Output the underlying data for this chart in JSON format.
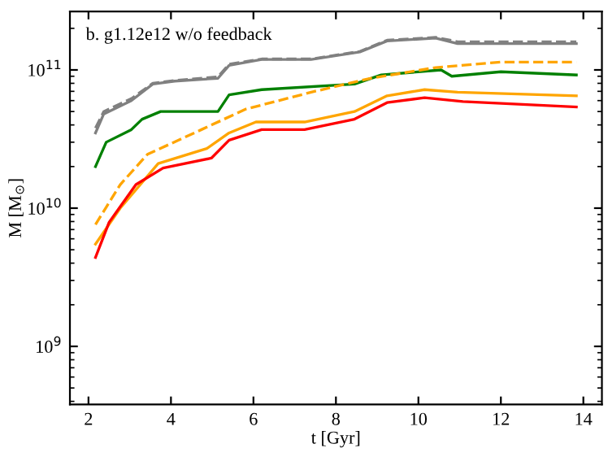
{
  "chart_data": {
    "type": "line",
    "xlabel": "t [Gyr]",
    "ylabel": "M [M$_{⊙}$]",
    "annotations": [
      "b. g1.12e12 w/o feedback"
    ],
    "log": "y",
    "xlim": [
      1.55,
      14.45
    ],
    "ylim": [
      380000000.0,
      265000000000.0
    ],
    "xticks": [
      2,
      4,
      6,
      8,
      10,
      12,
      14
    ],
    "yticks": [
      {
        "value": 1000000000.0,
        "label": "10$^{9}$"
      },
      {
        "value": 10000000000.0,
        "label": "10$^{10}$"
      },
      {
        "value": 100000000000.0,
        "label": "10$^{11}$"
      }
    ],
    "grid": false,
    "series": [
      {
        "color": "#808080",
        "line_style": "dashed",
        "x": [
          2.17,
          2.37,
          3.04,
          3.56,
          4.09,
          5.14,
          5.41,
          6.2,
          7.4,
          8.58,
          9.24,
          10.42,
          10.95,
          13.83
        ],
        "values": [
          38000000000.0,
          50000000000.0,
          62000000000.0,
          80000000000.0,
          84000000000.0,
          89000000000.0,
          110000000000.0,
          120000000000.0,
          120000000000.0,
          136000000000.0,
          164000000000.0,
          172000000000.0,
          160000000000.0,
          160000000000.0
        ]
      },
      {
        "color": "#808080",
        "line_style": "solid",
        "x": [
          2.17,
          2.37,
          3.04,
          3.56,
          4.09,
          5.14,
          5.41,
          6.2,
          7.4,
          8.58,
          9.24,
          10.42,
          10.95,
          13.83
        ],
        "values": [
          35000000000.0,
          48000000000.0,
          60000000000.0,
          79000000000.0,
          83000000000.0,
          87000000000.0,
          108000000000.0,
          119000000000.0,
          119000000000.0,
          135000000000.0,
          162000000000.0,
          170000000000.0,
          155000000000.0,
          155000000000.0
        ]
      },
      {
        "color": "#008000",
        "line_style": "solid",
        "x": [
          2.17,
          2.43,
          3.04,
          3.3,
          3.75,
          4.2,
          5.14,
          5.41,
          6.2,
          8.45,
          9.1,
          10.55,
          10.81,
          12.0,
          13.83
        ],
        "values": [
          20000000000.0,
          30000000000.0,
          37000000000.0,
          44000000000.0,
          50000000000.0,
          50000000000.0,
          50000000000.0,
          66000000000.0,
          72000000000.0,
          79000000000.0,
          92000000000.0,
          100000000000.0,
          90000000000.0,
          97000000000.0,
          92000000000.0
        ]
      },
      {
        "color": "#ffa500",
        "line_style": "dashed",
        "x": [
          2.17,
          2.77,
          3.43,
          4.74,
          5.81,
          7.4,
          8.84,
          10.42,
          12.0,
          13.83
        ],
        "values": [
          7600000000.0,
          14800000000.0,
          24500000000.0,
          37000000000.0,
          52000000000.0,
          69000000000.0,
          87000000000.0,
          104000000000.0,
          114000000000.0,
          114000000000.0
        ]
      },
      {
        "color": "#ffa500",
        "line_style": "solid",
        "x": [
          2.17,
          2.77,
          3.69,
          4.87,
          5.41,
          6.06,
          7.24,
          8.45,
          9.24,
          10.15,
          10.95,
          13.83
        ],
        "values": [
          5500000000.0,
          10000000000.0,
          21000000000.0,
          27000000000.0,
          35000000000.0,
          42000000000.0,
          42000000000.0,
          50000000000.0,
          65000000000.0,
          72000000000.0,
          69000000000.0,
          65000000000.0
        ]
      },
      {
        "color": "#ff0000",
        "line_style": "solid",
        "x": [
          2.17,
          2.5,
          3.15,
          3.81,
          4.98,
          5.41,
          6.2,
          7.24,
          8.45,
          9.24,
          10.15,
          11.08,
          13.83
        ],
        "values": [
          4400000000.0,
          7900000000.0,
          14800000000.0,
          19500000000.0,
          23000000000.0,
          31000000000.0,
          37000000000.0,
          37000000000.0,
          44000000000.0,
          58000000000.0,
          63000000000.0,
          59000000000.0,
          54000000000.0
        ]
      }
    ]
  }
}
